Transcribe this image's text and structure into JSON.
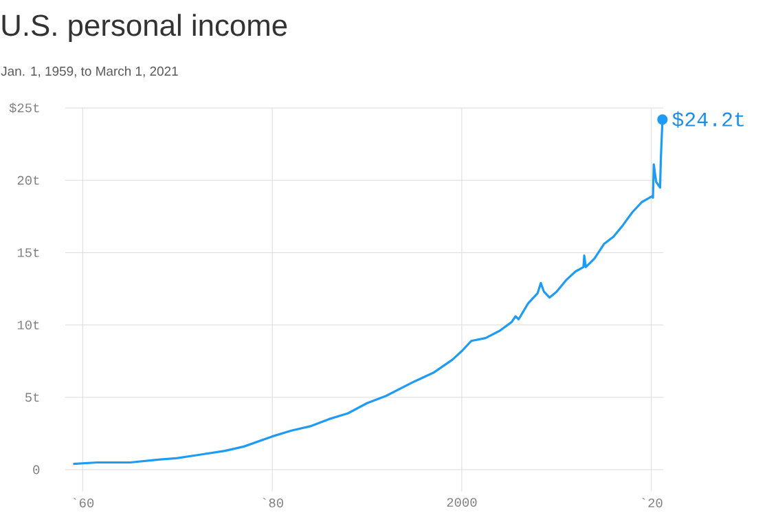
{
  "chart_data": {
    "type": "line",
    "title": "U.S. personal income",
    "subtitle": "Jan. 1, 1959, to March 1, 2021",
    "x": [
      "1959-01",
      "1961-07",
      "1965-01",
      "1968-01",
      "1970-01",
      "1972-01",
      "1975-01",
      "1977-01",
      "1980-01",
      "1982-01",
      "1984-01",
      "1986-01",
      "1988-01",
      "1990-01",
      "1992-01",
      "1993-07",
      "1995-01",
      "1997-01",
      "1999-01",
      "2000-01",
      "2001-01",
      "2002-07",
      "2004-01",
      "2005-04",
      "2005-09",
      "2006-01",
      "2007-01",
      "2008-01",
      "2008-05",
      "2008-09",
      "2009-04",
      "2010-01",
      "2011-01",
      "2012-01",
      "2012-11",
      "2012-12",
      "2013-02",
      "2014-01",
      "2015-01",
      "2016-01",
      "2017-01",
      "2018-01",
      "2019-01",
      "2020-02",
      "2020-03",
      "2020-04",
      "2020-07",
      "2020-12",
      "2021-01",
      "2021-03"
    ],
    "values": [
      0.4,
      0.5,
      0.5,
      0.7,
      0.8,
      1.0,
      1.3,
      1.6,
      2.3,
      2.7,
      3.0,
      3.5,
      3.9,
      4.6,
      5.1,
      5.6,
      6.1,
      6.7,
      7.6,
      8.2,
      8.9,
      9.1,
      9.6,
      10.2,
      10.6,
      10.4,
      11.5,
      12.2,
      12.9,
      12.3,
      11.9,
      12.3,
      13.1,
      13.7,
      14.0,
      14.8,
      14.0,
      14.6,
      15.6,
      16.1,
      16.9,
      17.8,
      18.5,
      18.9,
      18.8,
      21.1,
      19.9,
      19.5,
      21.5,
      24.2
    ],
    "color": "#1e9bf5",
    "xlim": [
      "1958-03",
      "2021-04"
    ],
    "ylim": [
      -1.5,
      25
    ],
    "xticks": [
      {
        "value": "1960",
        "label": "`60"
      },
      {
        "value": "1980",
        "label": "`80"
      },
      "2000",
      {
        "value": "2020",
        "label": "`20"
      }
    ],
    "yticks": [
      0,
      {
        "value": 5,
        "label": "5t"
      },
      {
        "value": 10,
        "label": "10t"
      },
      {
        "value": 15,
        "label": "15t"
      },
      {
        "value": 20,
        "label": "20t"
      },
      {
        "value": 25,
        "label": "$25t"
      }
    ],
    "grid": true,
    "annotations": [
      {
        "text": "$24.2t",
        "x": "2021-03",
        "y": 24.2
      }
    ]
  }
}
